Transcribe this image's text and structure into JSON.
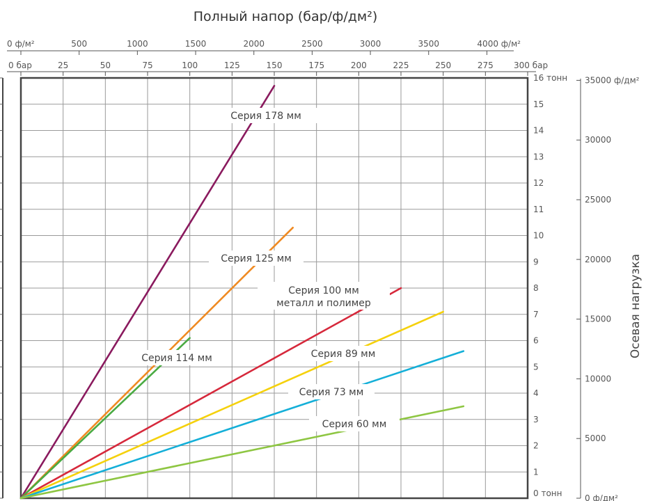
{
  "chart_data": {
    "type": "line",
    "title": "Полный напор  (бар/ф/дм²)",
    "ylabel_right": "Осевая нагрузка",
    "x_axis_bar": {
      "unit": "бар",
      "ticks": [
        "0 бар",
        "25",
        "50",
        "75",
        "100",
        "125",
        "150",
        "175",
        "200",
        "225",
        "250",
        "275",
        "300 бар"
      ],
      "range": [
        0,
        300
      ]
    },
    "x_axis_psi": {
      "unit": "ф/м²",
      "ticks": [
        "0 ф/м²",
        "500",
        "1000",
        "1500",
        "2000",
        "2500",
        "3000",
        "3500",
        "4000 ф/м²"
      ],
      "range": [
        0,
        4350
      ]
    },
    "y_axis_tonnes": {
      "unit": "тонн",
      "ticks": [
        "0  тонн",
        "1",
        "2",
        "3",
        "4",
        "5",
        "6",
        "7",
        "8",
        "9",
        "10",
        "11",
        "12",
        "13",
        "14",
        "15",
        "16  тонн"
      ],
      "range": [
        0,
        16
      ]
    },
    "y_axis_lbf": {
      "ticks": [
        "0 ф/дм²",
        "5000",
        "10000",
        "15000",
        "20000",
        "25000",
        "30000",
        "35000 ф/дм²"
      ],
      "range": [
        0,
        35200
      ]
    },
    "grid": true,
    "series": [
      {
        "name": "Серия 178 мм",
        "color": "#8a1a5e",
        "x": [
          0,
          150
        ],
        "y": [
          0,
          15.7
        ]
      },
      {
        "name": "Серия 125 мм",
        "color": "#ef8a22",
        "x": [
          0,
          161
        ],
        "y": [
          0,
          10.3
        ]
      },
      {
        "name": "Серия 114 мм",
        "color": "#4aab43",
        "x": [
          0,
          100
        ],
        "y": [
          0,
          6.1
        ]
      },
      {
        "name": "Серия 100 мм металл и полимер",
        "color": "#d6283b",
        "x": [
          0,
          225
        ],
        "y": [
          0,
          8.0
        ]
      },
      {
        "name": "Серия 89 мм",
        "color": "#f5d10c",
        "x": [
          0,
          250
        ],
        "y": [
          0,
          7.1
        ]
      },
      {
        "name": "Серия 73 мм",
        "color": "#14afd8",
        "x": [
          0,
          262
        ],
        "y": [
          0,
          5.6
        ]
      },
      {
        "name": "Серия 60 мм",
        "color": "#8ec642",
        "x": [
          0,
          262
        ],
        "y": [
          0,
          3.5
        ]
      }
    ]
  }
}
